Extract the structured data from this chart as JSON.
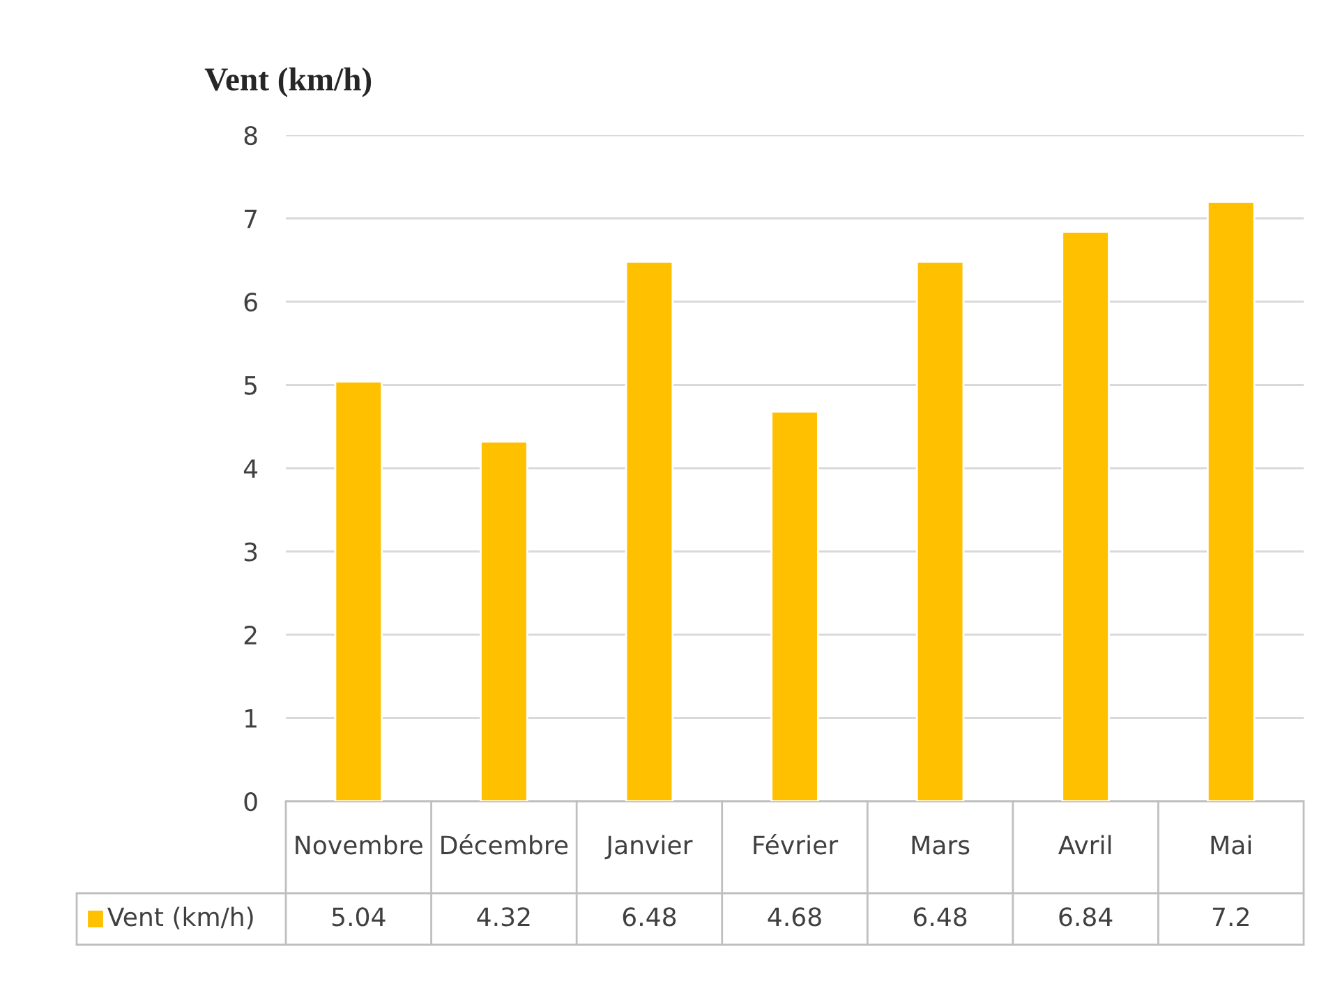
{
  "chart_data": {
    "type": "bar",
    "title": "Vent (km/h)",
    "categories": [
      "Novembre",
      "Décembre",
      "Janvier",
      "Février",
      "Mars",
      "Avril",
      "Mai"
    ],
    "series": [
      {
        "name": "Vent (km/h)",
        "color": "#ffc000",
        "values": [
          5.04,
          4.32,
          6.48,
          4.68,
          6.48,
          6.84,
          7.2
        ]
      }
    ],
    "ylim": [
      0,
      8
    ],
    "yticks": [
      0,
      1,
      2,
      3,
      4,
      5,
      6,
      7,
      8
    ],
    "grid": "y",
    "legend": "bottom",
    "data_labels": true
  }
}
